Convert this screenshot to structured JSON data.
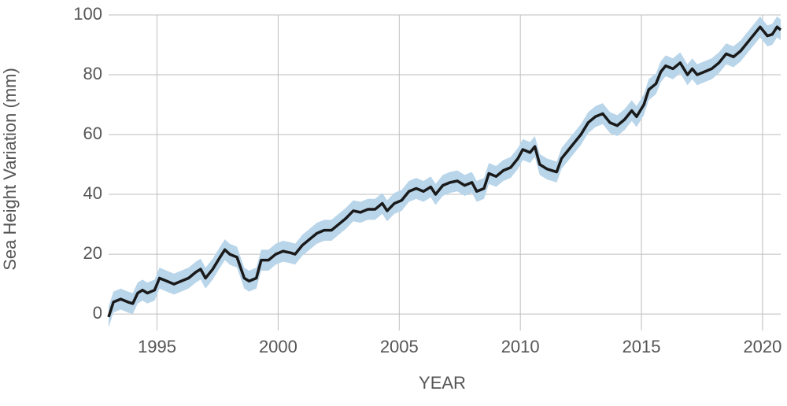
{
  "chart_data": {
    "type": "line",
    "xlabel": "YEAR",
    "ylabel": "Sea Height Variation (mm)",
    "x": [
      1993.0,
      1993.2,
      1993.5,
      1993.8,
      1994.0,
      1994.2,
      1994.4,
      1994.6,
      1994.9,
      1995.1,
      1995.4,
      1995.7,
      1996.0,
      1996.3,
      1996.6,
      1996.8,
      1997.0,
      1997.3,
      1997.6,
      1997.8,
      1998.0,
      1998.3,
      1998.6,
      1998.8,
      1999.1,
      1999.3,
      1999.6,
      1999.9,
      2000.2,
      2000.5,
      2000.7,
      2001.0,
      2001.3,
      2001.6,
      2001.9,
      2002.2,
      2002.5,
      2002.8,
      2003.1,
      2003.4,
      2003.7,
      2004.0,
      2004.3,
      2004.5,
      2004.8,
      2005.1,
      2005.4,
      2005.7,
      2006.0,
      2006.3,
      2006.5,
      2006.8,
      2007.1,
      2007.4,
      2007.7,
      2008.0,
      2008.2,
      2008.5,
      2008.7,
      2009.0,
      2009.3,
      2009.6,
      2009.9,
      2010.1,
      2010.4,
      2010.6,
      2010.8,
      2011.1,
      2011.3,
      2011.5,
      2011.7,
      2011.9,
      2012.2,
      2012.5,
      2012.8,
      2013.1,
      2013.4,
      2013.7,
      2014.0,
      2014.3,
      2014.6,
      2014.8,
      2015.1,
      2015.3,
      2015.6,
      2015.8,
      2016.0,
      2016.3,
      2016.6,
      2016.9,
      2017.1,
      2017.3,
      2017.6,
      2017.9,
      2018.2,
      2018.5,
      2018.8,
      2019.1,
      2019.4,
      2019.7,
      2019.9,
      2020.2,
      2020.4,
      2020.6,
      2020.75
    ],
    "series": [
      {
        "color": "#1a1a1a",
        "band_color": "#b9d5ea",
        "error": 3.5,
        "values": [
          -1,
          4,
          5,
          4,
          3.5,
          7,
          8,
          7,
          8,
          12,
          11,
          10,
          11,
          12,
          14,
          15,
          12,
          15,
          19,
          21.5,
          20,
          19,
          12,
          11,
          12,
          18,
          18,
          20,
          21,
          20.5,
          20,
          23,
          25,
          27,
          28,
          28,
          30,
          32,
          34.5,
          34,
          35,
          35,
          37,
          34.5,
          37,
          38,
          41,
          42,
          41,
          42.5,
          40,
          43,
          44,
          44.5,
          43,
          44,
          41,
          42,
          47,
          46,
          48,
          49,
          52,
          55,
          54,
          56,
          50,
          48.5,
          48,
          47.5,
          52,
          54,
          57,
          60,
          64,
          66,
          67,
          64,
          63,
          65,
          68,
          66,
          70,
          75,
          77,
          81,
          83,
          82,
          84,
          80,
          82,
          80,
          81,
          82,
          84,
          87,
          86,
          88,
          91,
          94,
          96,
          93,
          93.5,
          96,
          95
        ]
      }
    ],
    "xlim": [
      1993.0,
      2020.75
    ],
    "xticks": [
      1995,
      2000,
      2005,
      2010,
      2015,
      2020
    ],
    "ylim": [
      -5.5,
      100
    ],
    "yticks": [
      0,
      20,
      40,
      60,
      80,
      100
    ],
    "grid": true
  }
}
